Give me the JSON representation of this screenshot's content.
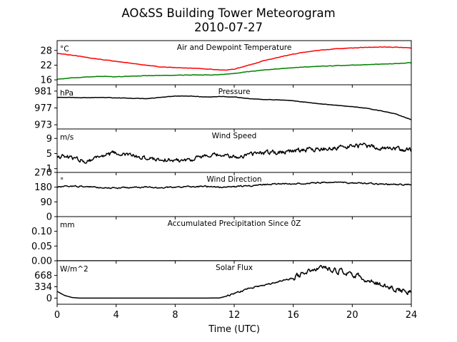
{
  "figure": {
    "title_line1": "AO&SS Building Tower Meteorogram",
    "title_line2": "2010-07-27",
    "xlabel": "Time (UTC)"
  },
  "chart_data": {
    "type": "line",
    "x_axis": {
      "label": "Time (UTC)",
      "range": [
        0,
        24
      ],
      "ticks": [
        0,
        4,
        8,
        12,
        16,
        20,
        24
      ]
    },
    "panels": [
      {
        "id": "temperature",
        "title": "Air and Dewpoint Temperature",
        "unit": "°C",
        "ylim": [
          14,
          32
        ],
        "yticks": [
          16,
          22,
          28
        ],
        "ytick_labels": [
          "16",
          "22",
          "28"
        ],
        "noise": 0.15,
        "series": [
          {
            "color": "#ff0000",
            "x": [
              0,
              1,
              2,
              3,
              4,
              5,
              6,
              7,
              8,
              9,
              10,
              11,
              11.5,
              12,
              13,
              14,
              15,
              16,
              17,
              18,
              19,
              20,
              21,
              22,
              23,
              24
            ],
            "y": [
              26.8,
              26.1,
              25.2,
              24.3,
              23.5,
              22.8,
              22.0,
              21.3,
              21.0,
              20.8,
              20.5,
              20.1,
              20.0,
              20.4,
              22.0,
              23.8,
              25.2,
              26.5,
              27.5,
              28.2,
              28.7,
              29.0,
              29.3,
              29.4,
              29.3,
              29.0
            ]
          },
          {
            "color": "#008000",
            "x": [
              0,
              1,
              2,
              3,
              4,
              5,
              6,
              7,
              8,
              9,
              10,
              11,
              12,
              13,
              14,
              15,
              16,
              17,
              18,
              19,
              20,
              21,
              22,
              23,
              24
            ],
            "y": [
              16.3,
              16.8,
              17.2,
              17.4,
              17.3,
              17.5,
              17.7,
              17.8,
              17.9,
              18.0,
              18.0,
              18.1,
              18.6,
              19.4,
              20.0,
              20.5,
              21.0,
              21.3,
              21.6,
              21.8,
              22.0,
              22.2,
              22.4,
              22.6,
              23.0
            ]
          }
        ]
      },
      {
        "id": "pressure",
        "title": "Pressure",
        "unit": "hPa",
        "ylim": [
          972,
          982.5
        ],
        "yticks": [
          973,
          977,
          981
        ],
        "ytick_labels": [
          "973",
          "977",
          "981"
        ],
        "noise": 0.08,
        "series": [
          {
            "color": "#000000",
            "x": [
              0,
              1,
              2,
              3,
              4,
              5,
              6,
              7,
              8,
              9,
              10,
              11,
              12,
              13,
              14,
              15,
              16,
              17,
              18,
              19,
              20,
              21,
              22,
              23,
              24
            ],
            "y": [
              979.5,
              979.5,
              979.4,
              979.5,
              979.4,
              979.3,
              979.2,
              979.5,
              979.8,
              979.8,
              979.6,
              979.7,
              979.6,
              979.2,
              979.0,
              978.9,
              978.7,
              978.3,
              977.9,
              977.6,
              977.3,
              976.9,
              976.3,
              975.5,
              974.2
            ]
          }
        ]
      },
      {
        "id": "wind_speed",
        "title": "Wind Speed",
        "unit": "m/s",
        "ylim": [
          0,
          11.5
        ],
        "yticks": [
          1,
          5,
          9
        ],
        "ytick_labels": [
          "1",
          "5",
          "9"
        ],
        "noise": 1.0,
        "series": [
          {
            "color": "#000000",
            "x": [
              0,
              1,
              2,
              3,
              4,
              5,
              6,
              7,
              8,
              9,
              10,
              11,
              12,
              13,
              14,
              15,
              16,
              17,
              18,
              19,
              20,
              21,
              22,
              23,
              24
            ],
            "y": [
              4.5,
              3.8,
              3.0,
              4.5,
              5.0,
              4.5,
              3.8,
              3.5,
              3.2,
              3.5,
              4.2,
              4.5,
              4.0,
              4.8,
              5.2,
              5.5,
              5.8,
              6.0,
              6.2,
              6.5,
              7.0,
              7.0,
              6.5,
              6.2,
              6.0
            ]
          }
        ]
      },
      {
        "id": "wind_direction",
        "title": "Wind Direction",
        "unit": "°",
        "ylim": [
          0,
          270
        ],
        "yticks": [
          0,
          90,
          180,
          270
        ],
        "ytick_labels": [
          "0",
          "90",
          "180",
          "270"
        ],
        "noise": 7,
        "series": [
          {
            "color": "#000000",
            "x": [
              0,
              1,
              2,
              3,
              4,
              5,
              6,
              7,
              8,
              9,
              10,
              11,
              12,
              13,
              14,
              15,
              16,
              17,
              18,
              19,
              20,
              21,
              22,
              23,
              24
            ],
            "y": [
              180,
              186,
              183,
              178,
              175,
              178,
              180,
              176,
              180,
              184,
              184,
              180,
              183,
              190,
              195,
              200,
              202,
              205,
              208,
              208,
              205,
              202,
              198,
              196,
              196
            ]
          }
        ]
      },
      {
        "id": "precipitation",
        "title": "Accumulated Precipitation Since 0Z",
        "unit": "mm",
        "ylim": [
          0,
          0.15
        ],
        "yticks": [
          0.0,
          0.05,
          0.1
        ],
        "ytick_labels": [
          "0.00",
          "0.05",
          "0.10"
        ],
        "noise": 0,
        "series": [
          {
            "color": "#000000",
            "x": [
              0,
              24
            ],
            "y": [
              0,
              0
            ]
          }
        ]
      },
      {
        "id": "solar",
        "title": "Solar Flux",
        "unit": "W/m^2",
        "ylim": [
          -180,
          1100
        ],
        "yticks": [
          0,
          334,
          668
        ],
        "ytick_labels": [
          "0",
          "334",
          "668"
        ],
        "noise": 60,
        "series": [
          {
            "color": "#000000",
            "x": [
              0,
              0.5,
              1,
              1.5,
              2,
              3,
              4,
              5,
              6,
              7,
              8,
              9,
              10,
              11,
              11.5,
              12,
              13,
              14,
              15,
              16,
              16.5,
              17,
              17.5,
              18,
              18.5,
              19,
              19.5,
              20,
              20.5,
              21,
              21.5,
              22,
              22.5,
              23,
              23.5,
              24
            ],
            "y": [
              200,
              80,
              20,
              0,
              0,
              0,
              0,
              0,
              0,
              0,
              0,
              0,
              0,
              5,
              60,
              140,
              280,
              380,
              480,
              600,
              700,
              790,
              850,
              880,
              870,
              820,
              760,
              700,
              640,
              560,
              480,
              400,
              330,
              280,
              230,
              190
            ]
          }
        ]
      }
    ]
  }
}
